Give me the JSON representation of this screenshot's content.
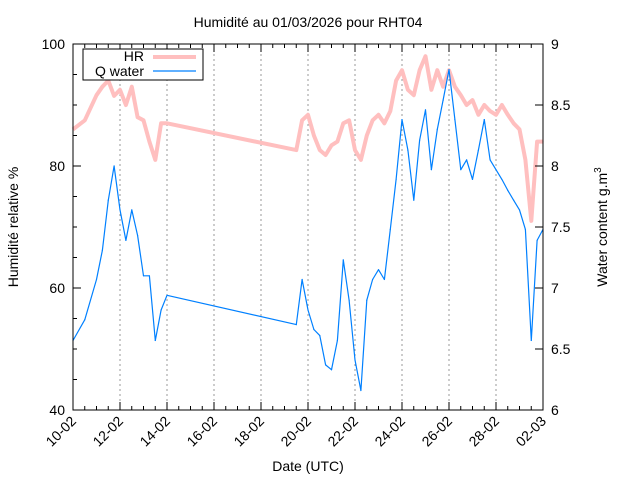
{
  "chart_data": {
    "type": "line",
    "title": "Humidité au 01/03/2026 pour RHT04",
    "xlabel": "Date (UTC)",
    "ylabel": "Humidité relative %",
    "y2label": "Water content g.m",
    "y2label_sup": "3",
    "xlim": [
      "2026-02-10T00:00",
      "2026-03-02T00:00"
    ],
    "ylim": [
      40,
      100
    ],
    "y2lim": [
      6,
      9
    ],
    "xticks": [
      "10-02",
      "12-02",
      "14-02",
      "16-02",
      "18-02",
      "20-02",
      "22-02",
      "24-02",
      "26-02",
      "28-02",
      "02-03"
    ],
    "yticks": [
      "40",
      "60",
      "80",
      "100"
    ],
    "y2ticks": [
      "6",
      "6.5",
      "7",
      "7.5",
      "8",
      "8.5",
      "9"
    ],
    "grid": "vertical dashed at major x ticks",
    "legend": "top-left",
    "series": [
      {
        "name": "HR",
        "axis": "left",
        "color": "#ffbfbf",
        "x": [
          "2026-02-10T00:00",
          "2026-02-10T12:00",
          "2026-02-11T00:00",
          "2026-02-11T06:00",
          "2026-02-11T12:00",
          "2026-02-11T18:00",
          "2026-02-12T00:00",
          "2026-02-12T06:00",
          "2026-02-12T12:00",
          "2026-02-12T18:00",
          "2026-02-13T00:00",
          "2026-02-13T06:00",
          "2026-02-13T12:00",
          "2026-02-13T18:00",
          "2026-02-14T00:00",
          "2026-02-19T12:00",
          "2026-02-19T18:00",
          "2026-02-20T00:00",
          "2026-02-20T06:00",
          "2026-02-20T12:00",
          "2026-02-20T18:00",
          "2026-02-21T00:00",
          "2026-02-21T06:00",
          "2026-02-21T12:00",
          "2026-02-21T18:00",
          "2026-02-22T00:00",
          "2026-02-22T06:00",
          "2026-02-22T12:00",
          "2026-02-22T18:00",
          "2026-02-23T00:00",
          "2026-02-23T06:00",
          "2026-02-23T12:00",
          "2026-02-23T18:00",
          "2026-02-24T00:00",
          "2026-02-24T06:00",
          "2026-02-24T12:00",
          "2026-02-24T18:00",
          "2026-02-25T00:00",
          "2026-02-25T06:00",
          "2026-02-25T12:00",
          "2026-02-25T18:00",
          "2026-02-26T00:00",
          "2026-02-26T06:00",
          "2026-02-26T12:00",
          "2026-02-26T18:00",
          "2026-02-27T00:00",
          "2026-02-27T06:00",
          "2026-02-27T12:00",
          "2026-02-27T18:00",
          "2026-02-28T00:00",
          "2026-02-28T06:00",
          "2026-02-28T12:00",
          "2026-02-28T18:00",
          "2026-03-01T00:00",
          "2026-03-01T06:00",
          "2026-03-01T12:00",
          "2026-03-01T18:00",
          "2026-03-02T00:00"
        ],
        "values": [
          86,
          87.5,
          91.6,
          93,
          94,
          91.5,
          92.5,
          90,
          93,
          88,
          87.5,
          84,
          81,
          87,
          87,
          82.6,
          87.5,
          88.4,
          85,
          82.6,
          81.8,
          83.4,
          84,
          87,
          87.5,
          82.6,
          81,
          85,
          87.5,
          88.4,
          87,
          89,
          94,
          95.7,
          92.5,
          91.6,
          95.7,
          98,
          92.5,
          95.7,
          93,
          95.7,
          93,
          91.6,
          90,
          90.8,
          88.4,
          90,
          89,
          88.4,
          90,
          88.4,
          87,
          86,
          81,
          71,
          84,
          84
        ]
      },
      {
        "name": "Q water",
        "axis": "right",
        "color": "#0080ff",
        "x": [
          "2026-02-10T00:00",
          "2026-02-10T12:00",
          "2026-02-11T00:00",
          "2026-02-11T06:00",
          "2026-02-11T12:00",
          "2026-02-11T18:00",
          "2026-02-12T00:00",
          "2026-02-12T06:00",
          "2026-02-12T12:00",
          "2026-02-12T18:00",
          "2026-02-13T00:00",
          "2026-02-13T06:00",
          "2026-02-13T12:00",
          "2026-02-13T18:00",
          "2026-02-14T00:00",
          "2026-02-19T12:00",
          "2026-02-19T18:00",
          "2026-02-20T00:00",
          "2026-02-20T06:00",
          "2026-02-20T12:00",
          "2026-02-20T18:00",
          "2026-02-21T00:00",
          "2026-02-21T06:00",
          "2026-02-21T12:00",
          "2026-02-21T18:00",
          "2026-02-22T00:00",
          "2026-02-22T06:00",
          "2026-02-22T12:00",
          "2026-02-22T18:00",
          "2026-02-23T00:00",
          "2026-02-23T06:00",
          "2026-02-23T12:00",
          "2026-02-23T18:00",
          "2026-02-24T00:00",
          "2026-02-24T06:00",
          "2026-02-24T12:00",
          "2026-02-24T18:00",
          "2026-02-25T00:00",
          "2026-02-25T06:00",
          "2026-02-25T12:00",
          "2026-02-25T18:00",
          "2026-02-26T00:00",
          "2026-02-26T06:00",
          "2026-02-26T12:00",
          "2026-02-26T18:00",
          "2026-02-27T00:00",
          "2026-02-27T06:00",
          "2026-02-27T12:00",
          "2026-02-27T18:00",
          "2026-02-28T00:00",
          "2026-02-28T06:00",
          "2026-02-28T12:00",
          "2026-02-28T18:00",
          "2026-03-01T00:00",
          "2026-03-01T06:00",
          "2026-03-01T12:00",
          "2026-03-01T18:00",
          "2026-03-02T00:00"
        ],
        "values": [
          6.57,
          6.74,
          7.07,
          7.31,
          7.72,
          8.0,
          7.64,
          7.39,
          7.64,
          7.43,
          7.1,
          7.1,
          6.57,
          6.82,
          6.94,
          6.7,
          7.07,
          6.82,
          6.66,
          6.61,
          6.37,
          6.33,
          6.57,
          7.23,
          6.9,
          6.41,
          6.16,
          6.9,
          7.07,
          7.15,
          7.07,
          7.48,
          7.89,
          8.38,
          8.13,
          7.72,
          8.21,
          8.46,
          7.97,
          8.3,
          8.54,
          8.79,
          8.38,
          7.97,
          8.05,
          7.89,
          8.13,
          8.38,
          8.05,
          7.97,
          7.89,
          7.8,
          7.72,
          7.64,
          7.48,
          6.57,
          7.39,
          7.48
        ]
      }
    ]
  }
}
